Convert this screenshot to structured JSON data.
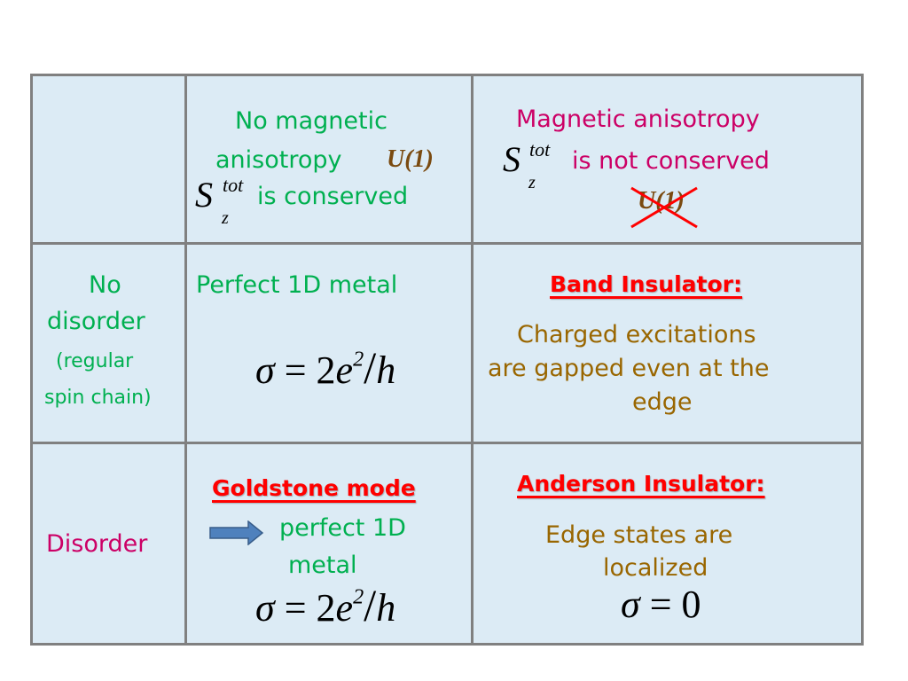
{
  "colors": {
    "cell_bg": "#dcebf5",
    "border": "#808080",
    "green": "#00b050",
    "magenta": "#cc0066",
    "brown": "#996600",
    "red": "#ff0000"
  },
  "header": {
    "col1": {
      "line1": "No magnetic",
      "line2": "anisotropy",
      "u1": "U(1)",
      "s_main": "S",
      "s_sup": "tot",
      "s_sub": "z",
      "line3": "is conserved"
    },
    "col2": {
      "line1": "Magnetic anisotropy",
      "s_main": "S",
      "s_sup": "tot",
      "s_sub": "z",
      "line2": "is not conserved",
      "u1": "U(1)",
      "u1_crossed": true
    }
  },
  "rows": [
    {
      "label": {
        "line1": "No",
        "line2": "disorder",
        "line3": "(regular",
        "line4": "spin chain)"
      },
      "col1": {
        "title": "Perfect 1D metal",
        "formula": {
          "lhs": "σ",
          "eq": "=",
          "coef": "2",
          "var": "e",
          "exp": "2",
          "slash": "/",
          "den": "h"
        }
      },
      "col2": {
        "title": "Band Insulator:",
        "line1": "Charged excitations",
        "line2": "are gapped even at the",
        "line3": "edge"
      }
    },
    {
      "label": {
        "line1": "Disorder"
      },
      "col1": {
        "title": "Goldstone mode",
        "arrow_icon": "right-arrow",
        "line1": "perfect 1D",
        "line2": "metal",
        "formula": {
          "lhs": "σ",
          "eq": "=",
          "coef": "2",
          "var": "e",
          "exp": "2",
          "slash": "/",
          "den": "h"
        }
      },
      "col2": {
        "title": "Anderson Insulator:",
        "line1": "Edge states are",
        "line2": "localized",
        "formula": {
          "lhs": "σ",
          "eq": "=",
          "rhs": "0"
        }
      }
    }
  ]
}
